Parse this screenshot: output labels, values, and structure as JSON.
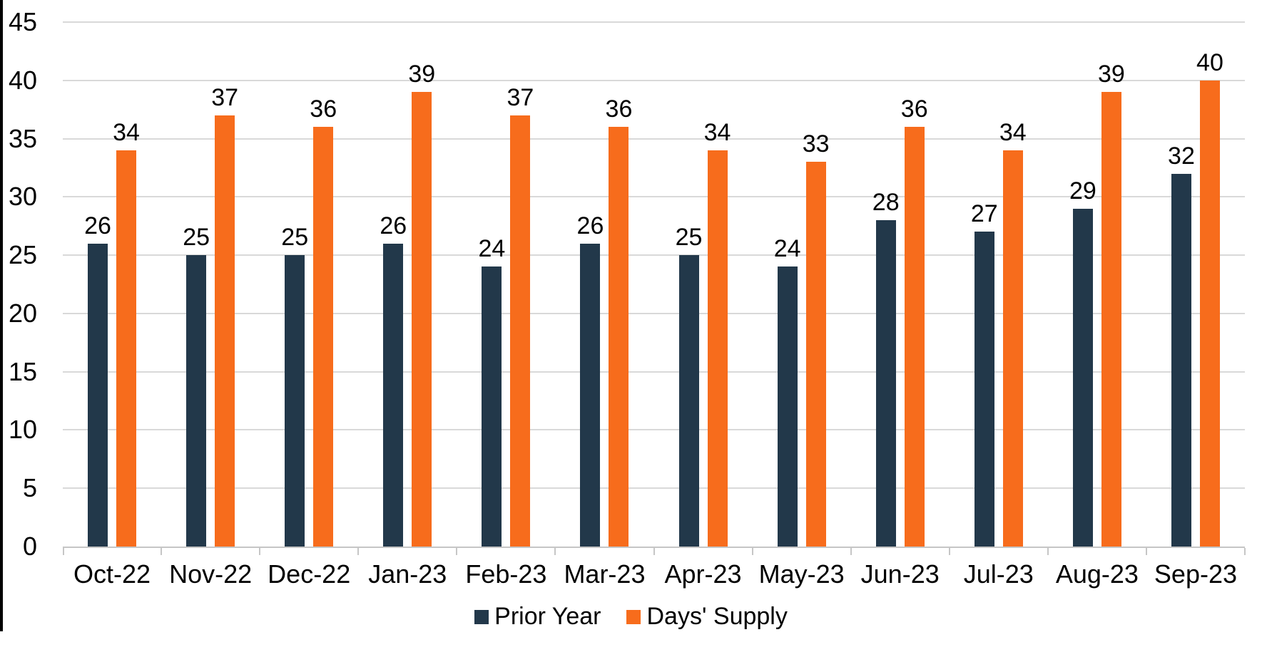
{
  "chart_data": {
    "type": "bar",
    "title": "",
    "xlabel": "",
    "ylabel": "",
    "categories": [
      "Oct-22",
      "Nov-22",
      "Dec-22",
      "Jan-23",
      "Feb-23",
      "Mar-23",
      "Apr-23",
      "May-23",
      "Jun-23",
      "Jul-23",
      "Aug-23",
      "Sep-23"
    ],
    "series": [
      {
        "name": "Prior Year",
        "color": "#22384A",
        "values": [
          26,
          25,
          25,
          26,
          24,
          26,
          25,
          24,
          28,
          27,
          29,
          32
        ]
      },
      {
        "name": "Days' Supply",
        "color": "#F76C1C",
        "values": [
          34,
          37,
          36,
          39,
          37,
          36,
          34,
          33,
          36,
          34,
          39,
          40
        ]
      }
    ],
    "ylim": [
      0,
      45
    ],
    "yticks": [
      0,
      5,
      10,
      15,
      20,
      25,
      30,
      35,
      40,
      45
    ],
    "grid": true,
    "value_labels_shown": true,
    "legend_position": "bottom"
  },
  "colors": {
    "background": "#FFFFFF",
    "grid_line": "#D9D9D9",
    "axis_line": "#C6C6C6",
    "text": "#000000",
    "left_border": "#000000"
  }
}
